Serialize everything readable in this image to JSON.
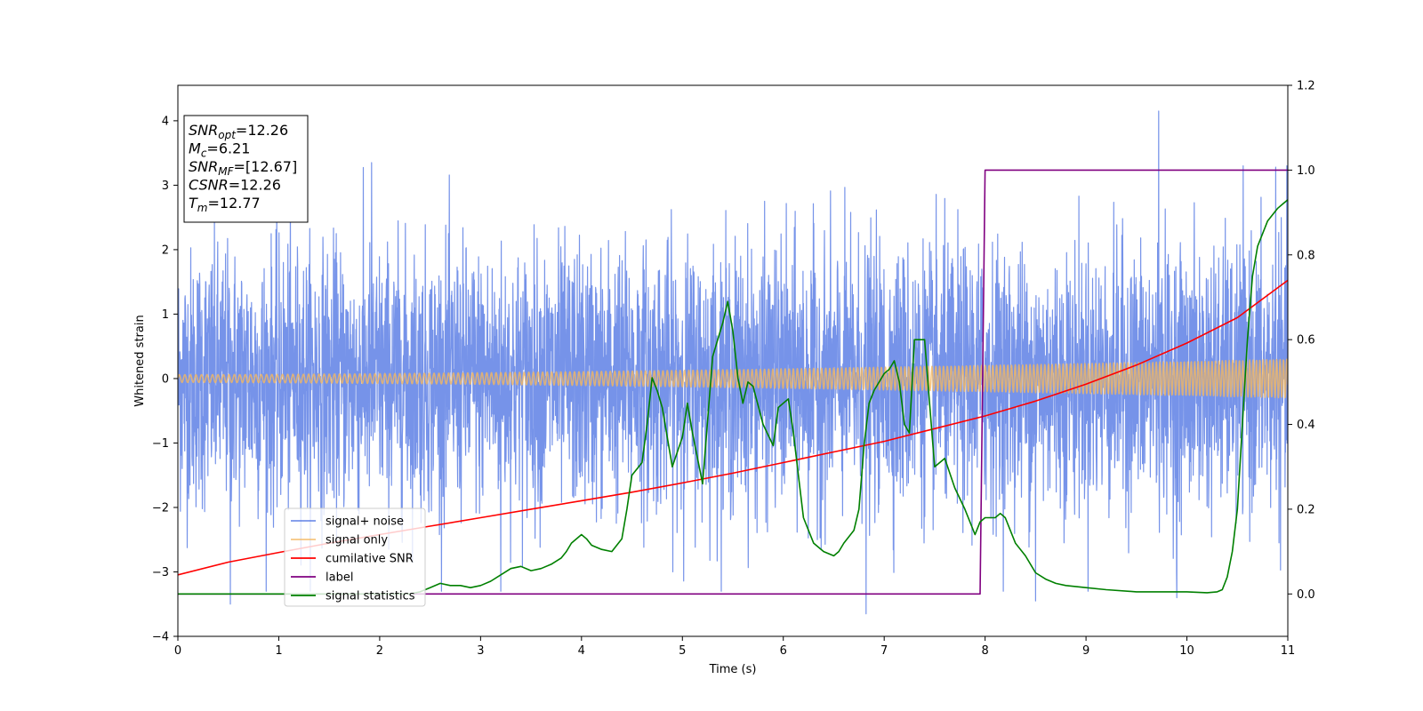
{
  "chart_data": {
    "type": "line",
    "title": "",
    "xlabel": "Time (s)",
    "ylabel": "Whitened strain",
    "y2label": "",
    "xlim": [
      0,
      11
    ],
    "ylim": [
      -4,
      4.55
    ],
    "y2lim": [
      -0.1,
      1.2
    ],
    "x_ticks": [
      0,
      1,
      2,
      3,
      4,
      5,
      6,
      7,
      8,
      9,
      10,
      11
    ],
    "y_ticks": [
      -4,
      -3,
      -2,
      -1,
      0,
      1,
      2,
      3,
      4
    ],
    "y2_ticks": [
      0.0,
      0.2,
      0.4,
      0.6,
      0.8,
      1.0,
      1.2
    ],
    "grid": false,
    "legend_position": "lower-left",
    "info_box": {
      "lines": [
        {
          "main": "SNR",
          "sub": "opt",
          "rest": "=12.26"
        },
        {
          "main": "M",
          "sub": "c",
          "rest": "=6.21"
        },
        {
          "main": "SNR",
          "sub": "MF",
          "rest": "=[12.67]"
        },
        {
          "main": "CSNR",
          "sub": "",
          "rest": "=12.26"
        },
        {
          "main": "T",
          "sub": "m",
          "rest": "=12.77"
        }
      ]
    },
    "series": [
      {
        "name": "signal+ noise",
        "axis": "left",
        "color": "#4169e1",
        "opacity": 0.72,
        "kind": "noise",
        "noise_sigma": 1.0,
        "notable_peaks": [
          [
            0.52,
            -3.5
          ],
          [
            1.92,
            3.35
          ],
          [
            3.2,
            -3.3
          ],
          [
            6.82,
            -3.65
          ],
          [
            9.72,
            4.15
          ],
          [
            8.5,
            -3.45
          ],
          [
            9.9,
            -3.4
          ],
          [
            10.88,
            3.28
          ]
        ]
      },
      {
        "name": "signal only",
        "axis": "left",
        "color": "#f4b860",
        "opacity": 0.8,
        "kind": "chirp",
        "amplitude_start": 0.06,
        "amplitude_end": 0.3
      },
      {
        "name": "cumilative SNR",
        "axis": "right",
        "color": "#ff0000",
        "x": [
          0,
          0.5,
          1,
          1.5,
          2,
          2.5,
          3,
          3.5,
          4,
          4.5,
          5,
          5.5,
          6,
          6.5,
          7,
          7.5,
          8,
          8.5,
          9,
          9.5,
          10,
          10.5,
          11
        ],
        "y": [
          0.045,
          0.075,
          0.098,
          0.12,
          0.14,
          0.16,
          0.18,
          0.2,
          0.22,
          0.24,
          0.262,
          0.285,
          0.31,
          0.335,
          0.36,
          0.39,
          0.42,
          0.455,
          0.495,
          0.54,
          0.592,
          0.652,
          0.74
        ]
      },
      {
        "name": "label",
        "axis": "right",
        "color": "#800080",
        "x": [
          0,
          7.95,
          8.0,
          11
        ],
        "y": [
          0,
          0,
          1,
          1
        ]
      },
      {
        "name": "signal statistics",
        "axis": "right",
        "color": "#008000",
        "x": [
          0,
          0.5,
          1.0,
          1.5,
          2.0,
          2.3,
          2.4,
          2.5,
          2.6,
          2.7,
          2.8,
          2.9,
          3.0,
          3.1,
          3.2,
          3.3,
          3.4,
          3.5,
          3.6,
          3.7,
          3.8,
          3.85,
          3.9,
          4.0,
          4.05,
          4.1,
          4.2,
          4.3,
          4.4,
          4.45,
          4.5,
          4.6,
          4.65,
          4.7,
          4.75,
          4.8,
          4.9,
          5.0,
          5.05,
          5.1,
          5.15,
          5.2,
          5.3,
          5.4,
          5.45,
          5.5,
          5.55,
          5.6,
          5.65,
          5.7,
          5.8,
          5.9,
          5.95,
          6.0,
          6.05,
          6.1,
          6.15,
          6.2,
          6.25,
          6.3,
          6.4,
          6.5,
          6.55,
          6.6,
          6.7,
          6.75,
          6.8,
          6.85,
          6.9,
          7.0,
          7.05,
          7.1,
          7.15,
          7.2,
          7.25,
          7.3,
          7.4,
          7.45,
          7.5,
          7.6,
          7.7,
          7.8,
          7.9,
          7.95,
          8.0,
          8.05,
          8.1,
          8.15,
          8.2,
          8.3,
          8.4,
          8.5,
          8.6,
          8.7,
          8.8,
          9.0,
          9.2,
          9.5,
          9.8,
          10.0,
          10.2,
          10.3,
          10.35,
          10.4,
          10.45,
          10.5,
          10.55,
          10.6,
          10.65,
          10.7,
          10.8,
          10.9,
          10.95,
          11.0
        ],
        "y": [
          0.0,
          0.0,
          0.0,
          0.0,
          0.0,
          0.0,
          0.005,
          0.015,
          0.025,
          0.02,
          0.02,
          0.015,
          0.02,
          0.03,
          0.045,
          0.06,
          0.065,
          0.055,
          0.06,
          0.07,
          0.085,
          0.1,
          0.12,
          0.14,
          0.13,
          0.115,
          0.105,
          0.1,
          0.13,
          0.2,
          0.28,
          0.31,
          0.4,
          0.51,
          0.48,
          0.44,
          0.3,
          0.37,
          0.45,
          0.38,
          0.32,
          0.26,
          0.56,
          0.64,
          0.69,
          0.62,
          0.51,
          0.45,
          0.5,
          0.49,
          0.4,
          0.35,
          0.44,
          0.45,
          0.46,
          0.38,
          0.28,
          0.18,
          0.15,
          0.12,
          0.1,
          0.09,
          0.1,
          0.12,
          0.15,
          0.2,
          0.35,
          0.45,
          0.48,
          0.52,
          0.53,
          0.55,
          0.5,
          0.4,
          0.38,
          0.6,
          0.6,
          0.45,
          0.3,
          0.32,
          0.25,
          0.2,
          0.14,
          0.17,
          0.18,
          0.18,
          0.18,
          0.19,
          0.18,
          0.12,
          0.09,
          0.05,
          0.035,
          0.025,
          0.02,
          0.015,
          0.01,
          0.005,
          0.005,
          0.005,
          0.003,
          0.005,
          0.01,
          0.04,
          0.1,
          0.2,
          0.4,
          0.6,
          0.75,
          0.82,
          0.88,
          0.91,
          0.92,
          0.93
        ]
      }
    ]
  }
}
